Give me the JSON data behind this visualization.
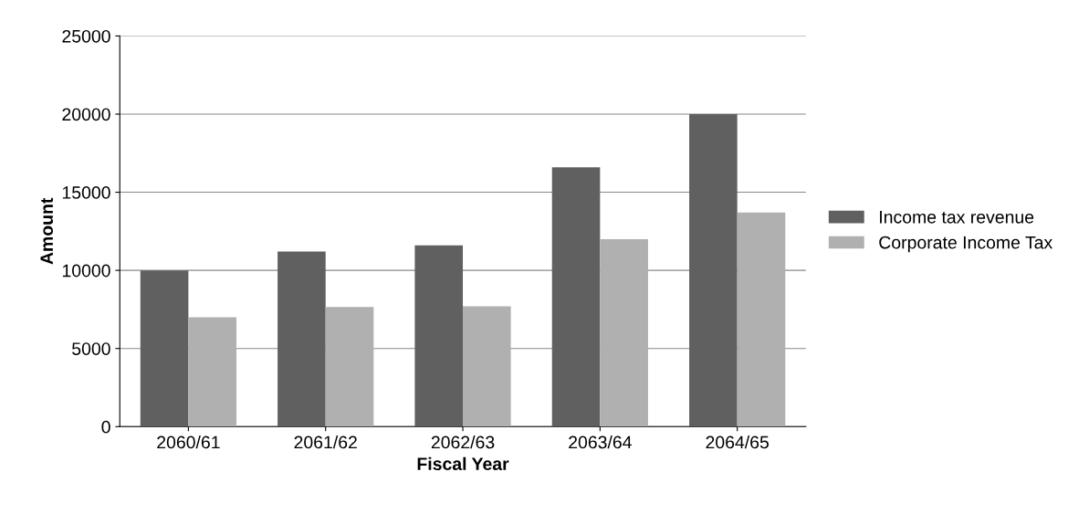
{
  "chart_data": {
    "type": "bar",
    "xlabel": "Fiscal Year",
    "ylabel": "Amount",
    "categories": [
      "2060/61",
      "2061/62",
      "2062/63",
      "2063/64",
      "2064/65"
    ],
    "series": [
      {
        "name": "Income tax revenue",
        "color": "#606060",
        "values": [
          10000,
          11200,
          11600,
          16600,
          20000
        ]
      },
      {
        "name": "Corporate Income Tax",
        "color": "#b0b0b0",
        "values": [
          7000,
          7650,
          7700,
          12000,
          13700
        ]
      }
    ],
    "ylim": [
      0,
      25000
    ],
    "yticks": [
      0,
      5000,
      10000,
      15000,
      20000,
      25000
    ],
    "grid": "y",
    "legend": "right"
  }
}
